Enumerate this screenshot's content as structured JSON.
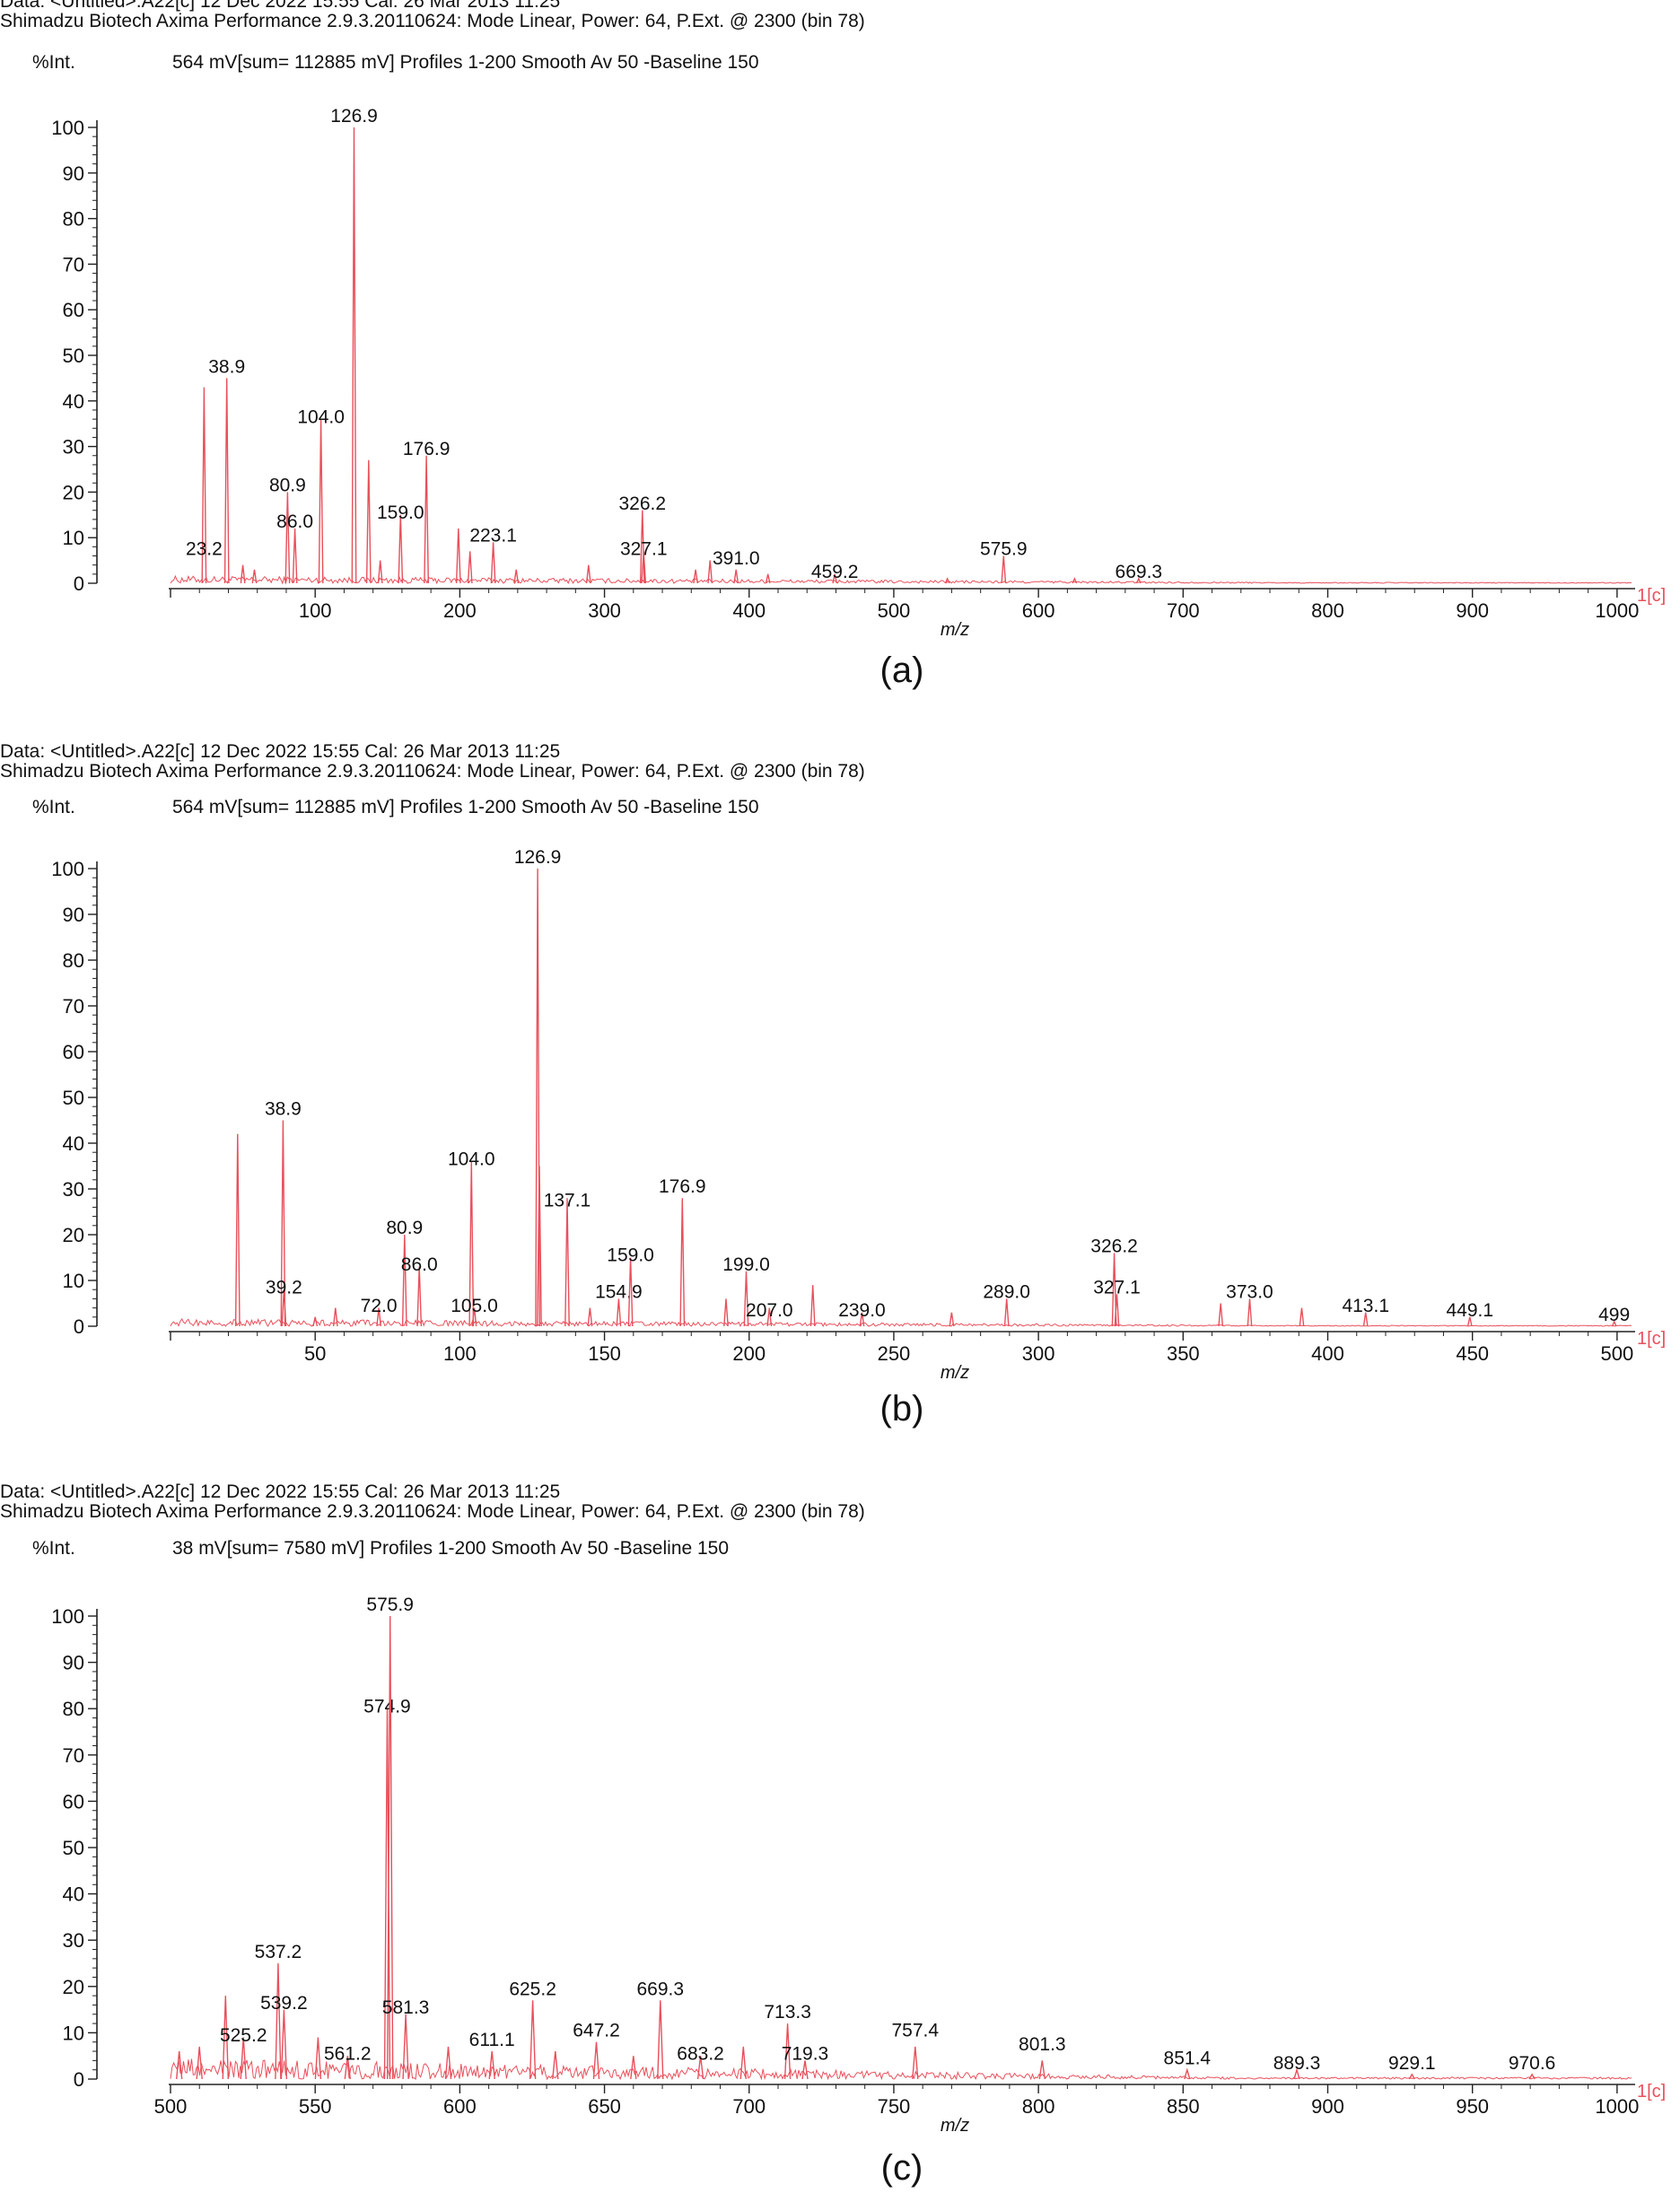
{
  "colors": {
    "spectrum": "#e8505b",
    "axis": "#222222",
    "text": "#111111"
  },
  "chart_data": [
    {
      "type": "line",
      "header_line1": "Data: <Untitled>.A22[c] 12 Dec 2022 15:55 Cal: 26 Mar 2013 11:25",
      "header_line2": "Shimadzu Biotech Axima Performance 2.9.3.20110624: Mode Linear, Power: 64, P.Ext. @ 2300 (bin 78)",
      "ylabel": "%Int.",
      "info": "564 mV[sum= 112885 mV]  Profiles 1-200 Smooth Av 50 -Baseline 150",
      "xlabel": "m/z",
      "channel": "1[c]",
      "caption": "(a)",
      "xlim": [
        0,
        1010
      ],
      "ylim": [
        0,
        100
      ],
      "x_ticks": [
        100,
        200,
        300,
        400,
        500,
        600,
        700,
        800,
        900,
        1000
      ],
      "y_ticks": [
        0,
        10,
        20,
        30,
        40,
        50,
        60,
        70,
        80,
        90,
        100
      ],
      "peaks": [
        {
          "x": 23.2,
          "y": 43,
          "label": "23.2",
          "ly": 5
        },
        {
          "x": 38.9,
          "y": 45,
          "label": "38.9",
          "ly": 45
        },
        {
          "x": 50,
          "y": 4
        },
        {
          "x": 58,
          "y": 3
        },
        {
          "x": 80.9,
          "y": 20,
          "label": "80.9",
          "ly": 19
        },
        {
          "x": 86.0,
          "y": 12,
          "label": "86.0",
          "ly": 11
        },
        {
          "x": 104.0,
          "y": 36,
          "label": "104.0",
          "ly": 34
        },
        {
          "x": 126.9,
          "y": 100,
          "label": "126.9",
          "ly": 100
        },
        {
          "x": 137,
          "y": 27
        },
        {
          "x": 145,
          "y": 5
        },
        {
          "x": 159.0,
          "y": 15,
          "label": "159.0",
          "ly": 13
        },
        {
          "x": 176.9,
          "y": 28,
          "label": "176.9",
          "ly": 27
        },
        {
          "x": 199,
          "y": 12
        },
        {
          "x": 207,
          "y": 7
        },
        {
          "x": 223.1,
          "y": 9,
          "label": "223.1",
          "ly": 8
        },
        {
          "x": 239,
          "y": 3
        },
        {
          "x": 289,
          "y": 4
        },
        {
          "x": 326.2,
          "y": 16,
          "label": "326.2",
          "ly": 15
        },
        {
          "x": 327.1,
          "y": 7,
          "label": "327.1",
          "ly": 5
        },
        {
          "x": 363,
          "y": 3
        },
        {
          "x": 373,
          "y": 5
        },
        {
          "x": 391.0,
          "y": 3,
          "label": "391.0",
          "ly": 3
        },
        {
          "x": 413,
          "y": 2
        },
        {
          "x": 459.2,
          "y": 2,
          "label": "459.2",
          "ly": 0
        },
        {
          "x": 537,
          "y": 1
        },
        {
          "x": 575.9,
          "y": 6,
          "label": "575.9",
          "ly": 5
        },
        {
          "x": 625,
          "y": 1
        },
        {
          "x": 669.3,
          "y": 1,
          "label": "669.3",
          "ly": 0
        }
      ]
    },
    {
      "type": "line",
      "header_line1": "Data: <Untitled>.A22[c] 12 Dec 2022 15:55 Cal: 26 Mar 2013 11:25",
      "header_line2": "Shimadzu Biotech Axima Performance 2.9.3.20110624: Mode Linear, Power: 64, P.Ext. @ 2300 (bin 78)",
      "ylabel": "%Int.",
      "info": "564 mV[sum= 112885 mV]  Profiles 1-200 Smooth Av 50 -Baseline 150",
      "xlabel": "m/z",
      "channel": "1[c]",
      "caption": "(b)",
      "xlim": [
        0,
        505
      ],
      "ylim": [
        0,
        100
      ],
      "x_ticks": [
        50,
        100,
        150,
        200,
        250,
        300,
        350,
        400,
        450,
        500
      ],
      "y_ticks": [
        0,
        10,
        20,
        30,
        40,
        50,
        60,
        70,
        80,
        90,
        100
      ],
      "peaks": [
        {
          "x": 23.2,
          "y": 42
        },
        {
          "x": 38.9,
          "y": 45,
          "label": "38.9",
          "ly": 45
        },
        {
          "x": 39.2,
          "y": 8,
          "label": "39.2",
          "ly": 6
        },
        {
          "x": 50,
          "y": 2
        },
        {
          "x": 57,
          "y": 4
        },
        {
          "x": 72.0,
          "y": 4,
          "label": "72.0",
          "ly": 2
        },
        {
          "x": 80.9,
          "y": 20,
          "label": "80.9",
          "ly": 19
        },
        {
          "x": 86.0,
          "y": 13,
          "label": "86.0",
          "ly": 11
        },
        {
          "x": 104.0,
          "y": 36,
          "label": "104.0",
          "ly": 34
        },
        {
          "x": 105.0,
          "y": 4,
          "label": "105.0",
          "ly": 2
        },
        {
          "x": 126.9,
          "y": 100,
          "label": "126.9",
          "ly": 100
        },
        {
          "x": 127.5,
          "y": 35
        },
        {
          "x": 137.1,
          "y": 28,
          "label": "137.1",
          "ly": 25
        },
        {
          "x": 145,
          "y": 4
        },
        {
          "x": 154.9,
          "y": 6,
          "label": "154.9",
          "ly": 5
        },
        {
          "x": 159.0,
          "y": 15,
          "label": "159.0",
          "ly": 13
        },
        {
          "x": 176.9,
          "y": 28,
          "label": "176.9",
          "ly": 28
        },
        {
          "x": 192,
          "y": 6
        },
        {
          "x": 199.0,
          "y": 12,
          "label": "199.0",
          "ly": 11
        },
        {
          "x": 207.0,
          "y": 4,
          "label": "207.0",
          "ly": 1
        },
        {
          "x": 222,
          "y": 9
        },
        {
          "x": 239.0,
          "y": 3,
          "label": "239.0",
          "ly": 1
        },
        {
          "x": 270,
          "y": 3
        },
        {
          "x": 289.0,
          "y": 6,
          "label": "289.0",
          "ly": 5
        },
        {
          "x": 326.2,
          "y": 16,
          "label": "326.2",
          "ly": 15
        },
        {
          "x": 327.1,
          "y": 7,
          "label": "327.1",
          "ly": 6
        },
        {
          "x": 363,
          "y": 5
        },
        {
          "x": 373.0,
          "y": 6,
          "label": "373.0",
          "ly": 5
        },
        {
          "x": 391,
          "y": 4
        },
        {
          "x": 413.1,
          "y": 3,
          "label": "413.1",
          "ly": 2
        },
        {
          "x": 449.1,
          "y": 2,
          "label": "449.1",
          "ly": 1
        },
        {
          "x": 499,
          "y": 1,
          "label": "499",
          "ly": 0
        }
      ]
    },
    {
      "type": "line",
      "header_line1": "Data: <Untitled>.A22[c] 12 Dec 2022 15:55 Cal: 26 Mar 2013 11:25",
      "header_line2": "Shimadzu Biotech Axima Performance 2.9.3.20110624: Mode Linear, Power: 64, P.Ext. @ 2300 (bin 78)",
      "ylabel": "%Int.",
      "info": "38 mV[sum= 7580 mV]  Profiles 1-200 Smooth Av 50 -Baseline 150",
      "xlabel": "m/z",
      "channel": "1[c]",
      "caption": "(c)",
      "xlim": [
        500,
        1005
      ],
      "ylim": [
        0,
        100
      ],
      "x_ticks": [
        500,
        550,
        600,
        650,
        700,
        750,
        800,
        850,
        900,
        950,
        1000
      ],
      "y_ticks": [
        0,
        10,
        20,
        30,
        40,
        50,
        60,
        70,
        80,
        90,
        100
      ],
      "peaks": [
        {
          "x": 503,
          "y": 6
        },
        {
          "x": 510,
          "y": 7
        },
        {
          "x": 519,
          "y": 18
        },
        {
          "x": 525.2,
          "y": 9,
          "label": "525.2",
          "ly": 7
        },
        {
          "x": 537.2,
          "y": 25,
          "label": "537.2",
          "ly": 25
        },
        {
          "x": 539.2,
          "y": 15,
          "label": "539.2",
          "ly": 14
        },
        {
          "x": 551,
          "y": 9
        },
        {
          "x": 561.2,
          "y": 5,
          "label": "561.2",
          "ly": 3
        },
        {
          "x": 574.9,
          "y": 80,
          "label": "574.9",
          "ly": 78
        },
        {
          "x": 575.9,
          "y": 100,
          "label": "575.9",
          "ly": 100
        },
        {
          "x": 581.3,
          "y": 14,
          "label": "581.3",
          "ly": 13
        },
        {
          "x": 596,
          "y": 7
        },
        {
          "x": 611.1,
          "y": 6,
          "label": "611.1",
          "ly": 6
        },
        {
          "x": 625.2,
          "y": 17,
          "label": "625.2",
          "ly": 17
        },
        {
          "x": 633,
          "y": 6
        },
        {
          "x": 647.2,
          "y": 8,
          "label": "647.2",
          "ly": 8
        },
        {
          "x": 660,
          "y": 5
        },
        {
          "x": 669.3,
          "y": 17,
          "label": "669.3",
          "ly": 17
        },
        {
          "x": 683.2,
          "y": 5,
          "label": "683.2",
          "ly": 3
        },
        {
          "x": 698,
          "y": 7
        },
        {
          "x": 713.3,
          "y": 12,
          "label": "713.3",
          "ly": 12
        },
        {
          "x": 719.3,
          "y": 4,
          "label": "719.3",
          "ly": 3
        },
        {
          "x": 757.4,
          "y": 7,
          "label": "757.4",
          "ly": 8
        },
        {
          "x": 801.3,
          "y": 4,
          "label": "801.3",
          "ly": 5
        },
        {
          "x": 851.4,
          "y": 2,
          "label": "851.4",
          "ly": 2
        },
        {
          "x": 889.3,
          "y": 2,
          "label": "889.3",
          "ly": 1
        },
        {
          "x": 929.1,
          "y": 1,
          "label": "929.1",
          "ly": 1
        },
        {
          "x": 970.6,
          "y": 1,
          "label": "970.6",
          "ly": 1
        }
      ]
    }
  ]
}
